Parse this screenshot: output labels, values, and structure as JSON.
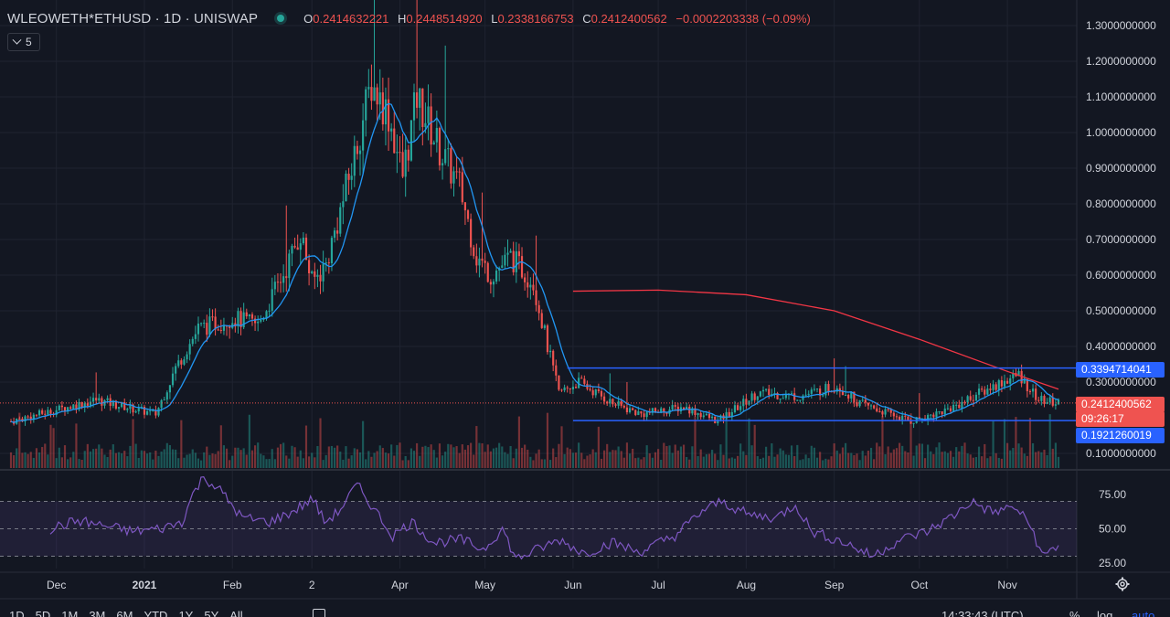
{
  "header": {
    "symbol": "WLEOWETH*ETHUSD · 1D · UNISWAP",
    "open_label": "O",
    "open": "0.2414632221",
    "high_label": "H",
    "high": "0.2448514920",
    "low_label": "L",
    "low": "0.2338166753",
    "close_label": "C",
    "close": "0.2412400562",
    "change": "−0.0002203338 (−0.09%)",
    "indicator_count": "5"
  },
  "price_tags": {
    "upper_line": "0.3394714041",
    "current": "0.2412400562",
    "countdown": "09:26:17",
    "lower_line": "0.1921260019"
  },
  "colors": {
    "background": "#131722",
    "up": "#26a69a",
    "down": "#ef5350",
    "ma_fast": "#2196f3",
    "ma_slow": "#f23645",
    "hline": "#2962ff",
    "rsi": "#7e57c2"
  },
  "bottom_bar": {
    "ranges": [
      "1D",
      "5D",
      "1M",
      "3M",
      "6M",
      "YTD",
      "1Y",
      "5Y",
      "All"
    ],
    "clock": "14:33:43 (UTC)",
    "percent": "%",
    "log": "log",
    "auto": "auto"
  },
  "chart_data": [
    {
      "type": "candlestick",
      "ylabel": "",
      "ylim": [
        0.0,
        1.3
      ],
      "y_ticks": [
        "1.3000000000",
        "1.2000000000",
        "1.1000000000",
        "1.0000000000",
        "0.9000000000",
        "0.8000000000",
        "0.7000000000",
        "0.6000000000",
        "0.5000000000",
        "0.4000000000",
        "0.3000000000",
        "0.1000000000"
      ],
      "x_ticks": [
        {
          "label": "Dec",
          "date": "2020-12-01"
        },
        {
          "label": "2021",
          "date": "2021-01-01"
        },
        {
          "label": "Feb",
          "date": "2021-02-01"
        },
        {
          "label": "2",
          "date": "2021-03-01"
        },
        {
          "label": "Apr",
          "date": "2021-04-01"
        },
        {
          "label": "May",
          "date": "2021-05-01"
        },
        {
          "label": "Jun",
          "date": "2021-06-01"
        },
        {
          "label": "Jul",
          "date": "2021-07-01"
        },
        {
          "label": "Aug",
          "date": "2021-08-01"
        },
        {
          "label": "Sep",
          "date": "2021-09-01"
        },
        {
          "label": "Oct",
          "date": "2021-10-01"
        },
        {
          "label": "Nov",
          "date": "2021-11-01"
        }
      ],
      "x_range": [
        "2020-11-15",
        "2021-11-19"
      ],
      "close_keypoints": [
        [
          "2020-11-15",
          0.19
        ],
        [
          "2020-12-15",
          0.25
        ],
        [
          "2021-01-05",
          0.21
        ],
        [
          "2021-01-12",
          0.34
        ],
        [
          "2021-01-20",
          0.45
        ],
        [
          "2021-02-01",
          0.48
        ],
        [
          "2021-02-10",
          0.46
        ],
        [
          "2021-02-20",
          0.62
        ],
        [
          "2021-02-25",
          0.72
        ],
        [
          "2021-03-01",
          0.58
        ],
        [
          "2021-03-06",
          0.63
        ],
        [
          "2021-03-15",
          0.9
        ],
        [
          "2021-03-22",
          1.14
        ],
        [
          "2021-03-28",
          1.05
        ],
        [
          "2021-04-02",
          0.88
        ],
        [
          "2021-04-07",
          1.1
        ],
        [
          "2021-04-15",
          0.95
        ],
        [
          "2021-04-22",
          0.85
        ],
        [
          "2021-04-28",
          0.65
        ],
        [
          "2021-05-03",
          0.6
        ],
        [
          "2021-05-10",
          0.65
        ],
        [
          "2021-05-18",
          0.58
        ],
        [
          "2021-05-23",
          0.4
        ],
        [
          "2021-05-27",
          0.27
        ],
        [
          "2021-06-03",
          0.3
        ],
        [
          "2021-06-15",
          0.24
        ],
        [
          "2021-06-25",
          0.21
        ],
        [
          "2021-07-10",
          0.23
        ],
        [
          "2021-07-22",
          0.19
        ],
        [
          "2021-08-05",
          0.27
        ],
        [
          "2021-08-20",
          0.26
        ],
        [
          "2021-09-02",
          0.29
        ],
        [
          "2021-09-10",
          0.24
        ],
        [
          "2021-09-28",
          0.19
        ],
        [
          "2021-10-10",
          0.22
        ],
        [
          "2021-10-20",
          0.26
        ],
        [
          "2021-10-30",
          0.3
        ],
        [
          "2021-11-05",
          0.32
        ],
        [
          "2021-11-12",
          0.25
        ],
        [
          "2021-11-19",
          0.241
        ]
      ],
      "series": [
        {
          "name": "",
          "kind": "moving-average-fast"
        },
        {
          "name": "",
          "kind": "moving-average-slow",
          "start": "2021-06-01",
          "values_keypoints": [
            [
              "2021-06-01",
              0.555
            ],
            [
              "2021-07-01",
              0.558
            ],
            [
              "2021-08-01",
              0.545
            ],
            [
              "2021-09-01",
              0.5
            ],
            [
              "2021-10-01",
              0.42
            ],
            [
              "2021-11-01",
              0.33
            ],
            [
              "2021-11-19",
              0.28
            ]
          ]
        }
      ],
      "horizontal_lines": [
        {
          "value": 0.3394714041,
          "from": "2021-05-30",
          "to": "2021-11-19"
        },
        {
          "value": 0.1921260019,
          "from": "2021-06-01",
          "to": "2021-11-19"
        }
      ],
      "grid": true,
      "volume": true
    },
    {
      "type": "line",
      "ylim": [
        20,
        85
      ],
      "y_ticks": [
        "75.00",
        "50.00",
        "25.00"
      ],
      "band": [
        30,
        70
      ],
      "values_keypoints": [
        [
          0,
          50
        ],
        [
          10,
          56
        ],
        [
          20,
          52
        ],
        [
          30,
          48
        ],
        [
          40,
          50
        ],
        [
          48,
          55
        ],
        [
          52,
          75
        ],
        [
          56,
          88
        ],
        [
          62,
          78
        ],
        [
          70,
          58
        ],
        [
          80,
          55
        ],
        [
          88,
          62
        ],
        [
          96,
          72
        ],
        [
          100,
          55
        ],
        [
          105,
          62
        ],
        [
          112,
          82
        ],
        [
          118,
          65
        ],
        [
          125,
          45
        ],
        [
          132,
          55
        ],
        [
          140,
          40
        ],
        [
          150,
          42
        ],
        [
          158,
          35
        ],
        [
          165,
          50
        ],
        [
          170,
          28
        ],
        [
          178,
          35
        ],
        [
          186,
          42
        ],
        [
          195,
          32
        ],
        [
          205,
          40
        ],
        [
          215,
          33
        ],
        [
          228,
          45
        ],
        [
          238,
          63
        ],
        [
          245,
          70
        ],
        [
          255,
          60
        ],
        [
          265,
          58
        ],
        [
          272,
          68
        ],
        [
          278,
          48
        ],
        [
          290,
          40
        ],
        [
          300,
          30
        ],
        [
          310,
          42
        ],
        [
          320,
          48
        ],
        [
          330,
          60
        ],
        [
          336,
          70
        ],
        [
          344,
          62
        ],
        [
          352,
          66
        ],
        [
          358,
          52
        ],
        [
          362,
          30
        ],
        [
          368,
          38
        ]
      ],
      "grid": true
    }
  ]
}
